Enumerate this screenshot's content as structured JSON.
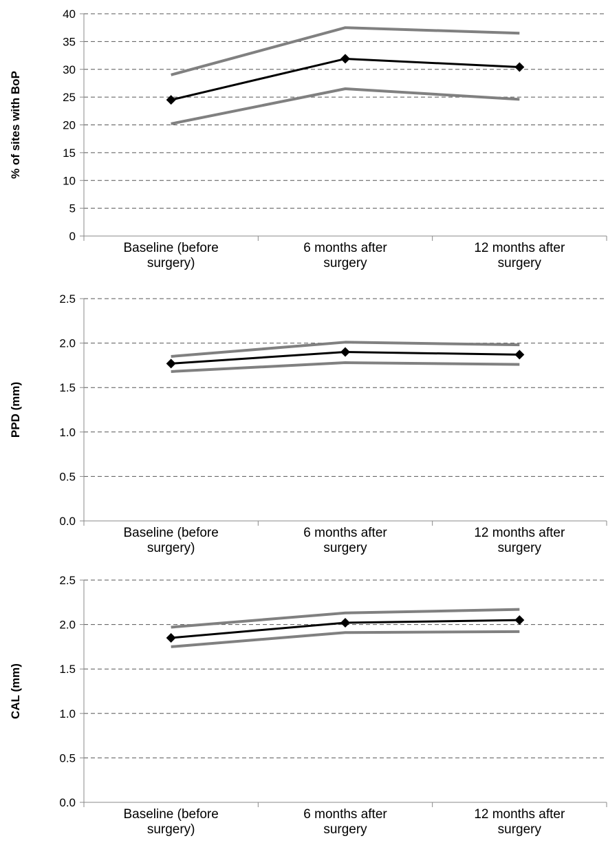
{
  "chart_data": [
    {
      "type": "line",
      "ylabel": "% of sites with BoP",
      "ylim": [
        0,
        40
      ],
      "yticks": [
        "0",
        "5",
        "10",
        "15",
        "20",
        "25",
        "30",
        "35",
        "40"
      ],
      "categories": [
        [
          "Baseline (before",
          "surgery)"
        ],
        [
          "6 months after",
          "surgery"
        ],
        [
          "12 months after",
          "surgery"
        ]
      ],
      "grid": true,
      "series": [
        {
          "role": "upper",
          "color": "#808080",
          "markers": false,
          "values": [
            29.0,
            37.5,
            36.5
          ]
        },
        {
          "role": "mean",
          "color": "#000000",
          "markers": true,
          "values": [
            24.5,
            31.9,
            30.4
          ]
        },
        {
          "role": "lower",
          "color": "#808080",
          "markers": false,
          "values": [
            20.2,
            26.5,
            24.6
          ]
        }
      ]
    },
    {
      "type": "line",
      "ylabel": "PPD (mm)",
      "ylim": [
        0,
        2.5
      ],
      "yticks": [
        "0.0",
        "0.5",
        "1.0",
        "1.5",
        "2.0",
        "2.5"
      ],
      "categories": [
        [
          "Baseline (before",
          "surgery)"
        ],
        [
          "6 months after",
          "surgery"
        ],
        [
          "12 months after",
          "surgery"
        ]
      ],
      "grid": true,
      "series": [
        {
          "role": "upper",
          "color": "#808080",
          "markers": false,
          "values": [
            1.85,
            2.01,
            1.98
          ]
        },
        {
          "role": "mean",
          "color": "#000000",
          "markers": true,
          "values": [
            1.77,
            1.9,
            1.87
          ]
        },
        {
          "role": "lower",
          "color": "#808080",
          "markers": false,
          "values": [
            1.68,
            1.78,
            1.76
          ]
        }
      ]
    },
    {
      "type": "line",
      "ylabel": "CAL (mm)",
      "ylim": [
        0,
        2.5
      ],
      "yticks": [
        "0.0",
        "0.5",
        "1.0",
        "1.5",
        "2.0",
        "2.5"
      ],
      "categories": [
        [
          "Baseline (before",
          "surgery)"
        ],
        [
          "6 months after",
          "surgery"
        ],
        [
          "12 months after",
          "surgery"
        ]
      ],
      "grid": true,
      "series": [
        {
          "role": "upper",
          "color": "#808080",
          "markers": false,
          "values": [
            1.97,
            2.13,
            2.17
          ]
        },
        {
          "role": "mean",
          "color": "#000000",
          "markers": true,
          "values": [
            1.85,
            2.02,
            2.05
          ]
        },
        {
          "role": "lower",
          "color": "#808080",
          "markers": false,
          "values": [
            1.75,
            1.91,
            1.92
          ]
        }
      ]
    }
  ]
}
